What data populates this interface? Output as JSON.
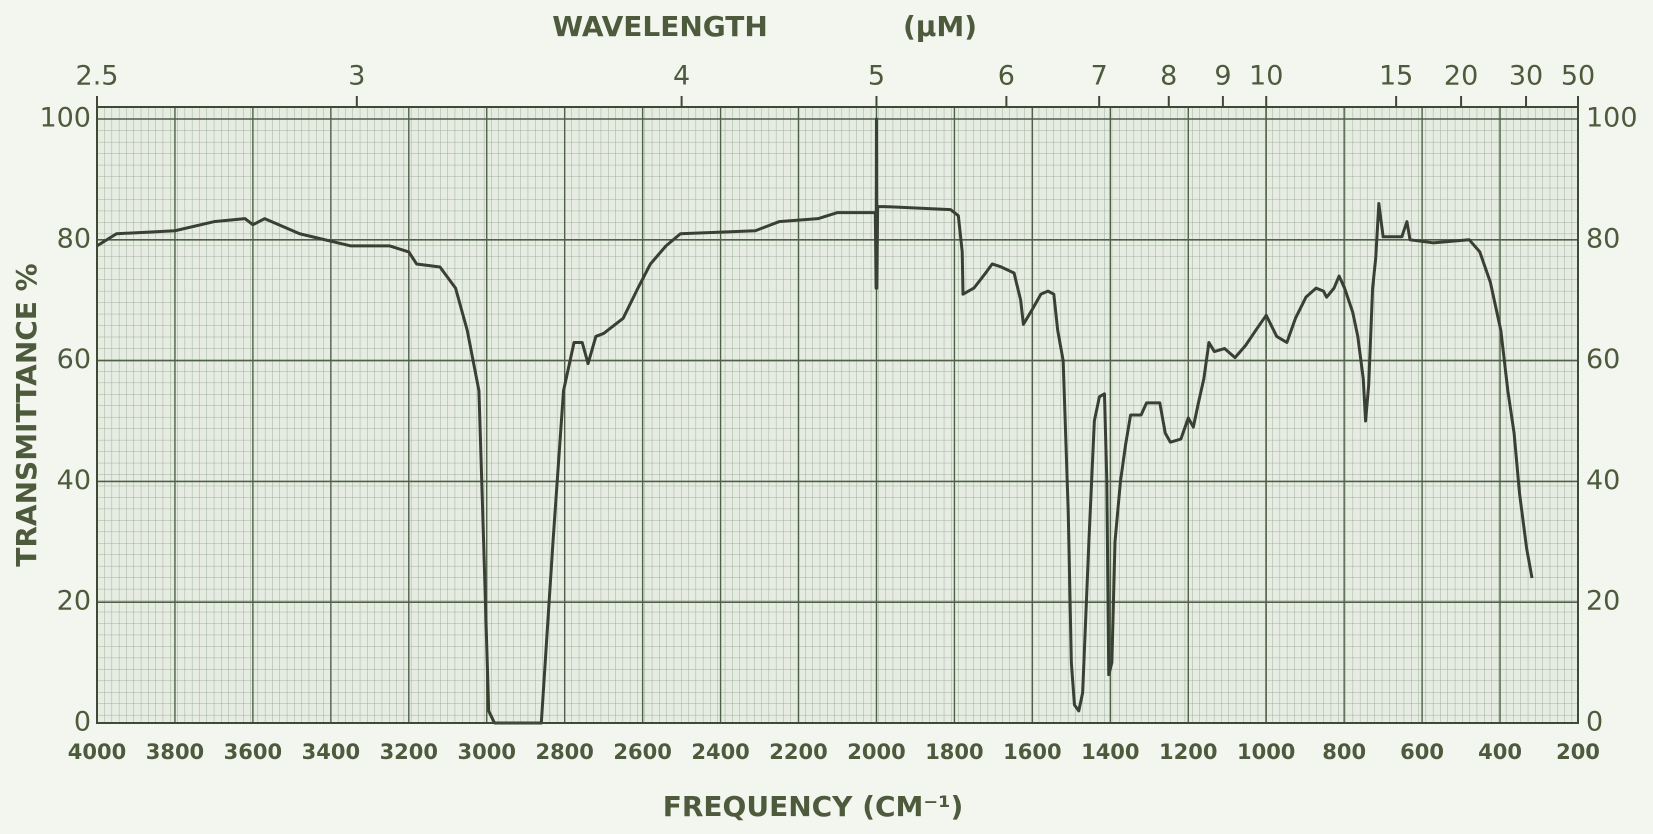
{
  "chart_data": {
    "type": "line",
    "title": "WAVELENGTH",
    "title_unit": "(μM)",
    "x_label": "FREQUENCY (CM⁻¹)",
    "y_label": "TRANSMITTANCE %",
    "color": "#3a3f34",
    "grid": true,
    "xlim": [
      4000,
      200
    ],
    "xticks": [
      4000,
      3800,
      3600,
      3400,
      3200,
      3000,
      2800,
      2600,
      2400,
      2200,
      2000,
      1800,
      1600,
      1400,
      1200,
      1000,
      800,
      600,
      400,
      200
    ],
    "ylim": [
      0,
      100
    ],
    "yticks": [
      0,
      20,
      40,
      60,
      80,
      100
    ],
    "x2lim": [
      2.5,
      50
    ],
    "x2ticks": [
      2.5,
      3,
      4,
      5,
      6,
      7,
      8,
      9,
      10,
      15,
      20,
      30,
      50
    ],
    "x": [
      4000,
      3950,
      3800,
      3700,
      3620,
      3600,
      3570,
      3480,
      3350,
      3250,
      3200,
      3180,
      3120,
      3080,
      3050,
      3020,
      3008,
      2995,
      2980,
      2860,
      2830,
      2803,
      2776,
      2755,
      2740,
      2720,
      2700,
      2650,
      2612,
      2580,
      2540,
      2503,
      2311,
      2250,
      2150,
      2100,
      2010,
      2003,
      2001,
      2000,
      1999,
      1997,
      1980,
      1810,
      1790,
      1780,
      1778,
      1750,
      1720,
      1703,
      1680,
      1647,
      1630,
      1623,
      1600,
      1578,
      1560,
      1545,
      1535,
      1521,
      1508,
      1500,
      1492,
      1481,
      1471,
      1455,
      1441,
      1428,
      1415,
      1409,
      1404,
      1396,
      1388,
      1374,
      1361,
      1348,
      1321,
      1307,
      1273,
      1259,
      1246,
      1219,
      1200,
      1187,
      1174,
      1160,
      1147,
      1133,
      1107,
      1080,
      1053,
      1027,
      1000,
      973,
      947,
      925,
      898,
      872,
      853,
      845,
      826,
      813,
      799,
      778,
      765,
      751,
      745,
      737,
      727,
      719,
      711,
      700,
      652,
      639,
      631,
      572,
      479,
      452,
      425,
      398,
      380,
      364,
      350,
      340,
      332,
      318
    ],
    "values": [
      79,
      81,
      81.5,
      83,
      83.5,
      82.5,
      83.5,
      81,
      79,
      79,
      78,
      76,
      75.5,
      72,
      65,
      55,
      30,
      2,
      0,
      0,
      30,
      55,
      63,
      63,
      59.5,
      64,
      64.5,
      67,
      72,
      76,
      79,
      81,
      81.5,
      83,
      83.5,
      84.5,
      84.5,
      84.5,
      72,
      100,
      72,
      85.5,
      85.5,
      85,
      84,
      78,
      71,
      72,
      74.5,
      76,
      75.5,
      74.5,
      70,
      66,
      68.5,
      71,
      71.5,
      71,
      65,
      60,
      35,
      10,
      3,
      2,
      5,
      30,
      50,
      54,
      54.5,
      40,
      8,
      10,
      30,
      40,
      46,
      51,
      51,
      53,
      53,
      48,
      46.5,
      47,
      50.5,
      49,
      53,
      57,
      63,
      61.5,
      62,
      60.5,
      62.5,
      65,
      67.5,
      64,
      63,
      67,
      70.5,
      72,
      71.5,
      70.5,
      72,
      74,
      72,
      68,
      64,
      57,
      50,
      56,
      72,
      77,
      86,
      80.5,
      80.5,
      83,
      80,
      79.5,
      80,
      78,
      73,
      65,
      55,
      48,
      38,
      33,
      29,
      24
    ]
  }
}
